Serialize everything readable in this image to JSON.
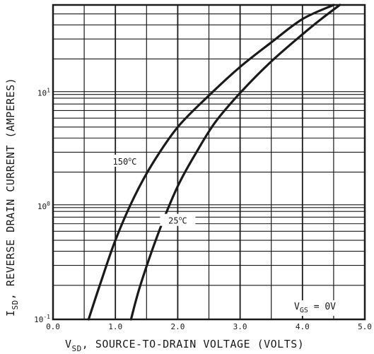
{
  "chart_data": {
    "type": "line",
    "title": "",
    "xlabel": {
      "main": "V",
      "sub": "SD",
      "rest": ", SOURCE-TO-DRAIN VOLTAGE (VOLTS)"
    },
    "ylabel": {
      "main": "I",
      "sub": "SD",
      "rest": ", REVERSE DRAIN CURRENT (AMPERES)"
    },
    "xlim": [
      0,
      5
    ],
    "ylim": [
      0.1,
      60
    ],
    "yscale": "log",
    "grid": true,
    "x_ticks": [
      {
        "value": 0,
        "label": "0.0"
      },
      {
        "value": 1,
        "label": "1.0"
      },
      {
        "value": 2,
        "label": "2.0"
      },
      {
        "value": 3,
        "label": "3.0"
      },
      {
        "value": 4,
        "label": "4.0"
      },
      {
        "value": 5,
        "label": "5.0"
      }
    ],
    "y_ticks": [
      {
        "value": 0.1,
        "base": "10",
        "exp": "-1"
      },
      {
        "value": 1,
        "base": "10",
        "exp": "0"
      },
      {
        "value": 10,
        "base": "10",
        "exp": "1"
      }
    ],
    "series": [
      {
        "name": "150°C",
        "label_parts": {
          "num": "150",
          "sup": "o",
          "unit": "C"
        },
        "points": [
          [
            0.57,
            0.1
          ],
          [
            0.75,
            0.2
          ],
          [
            1.0,
            0.5
          ],
          [
            1.3,
            1.2
          ],
          [
            1.6,
            2.4
          ],
          [
            2.0,
            5.0
          ],
          [
            2.5,
            9.5
          ],
          [
            3.0,
            17
          ],
          [
            3.5,
            28
          ],
          [
            4.0,
            45
          ],
          [
            4.5,
            60
          ]
        ]
      },
      {
        "name": "25°C",
        "label_parts": {
          "num": "25",
          "sup": "o",
          "unit": "C"
        },
        "points": [
          [
            1.25,
            0.1
          ],
          [
            1.4,
            0.2
          ],
          [
            1.7,
            0.6
          ],
          [
            2.0,
            1.5
          ],
          [
            2.3,
            3.0
          ],
          [
            2.6,
            5.5
          ],
          [
            3.0,
            10
          ],
          [
            3.5,
            19
          ],
          [
            4.0,
            33
          ],
          [
            4.3,
            45
          ],
          [
            4.6,
            60
          ]
        ]
      }
    ],
    "annotation": {
      "main": "V",
      "sub": "GS",
      "rest": " = 0V"
    }
  }
}
